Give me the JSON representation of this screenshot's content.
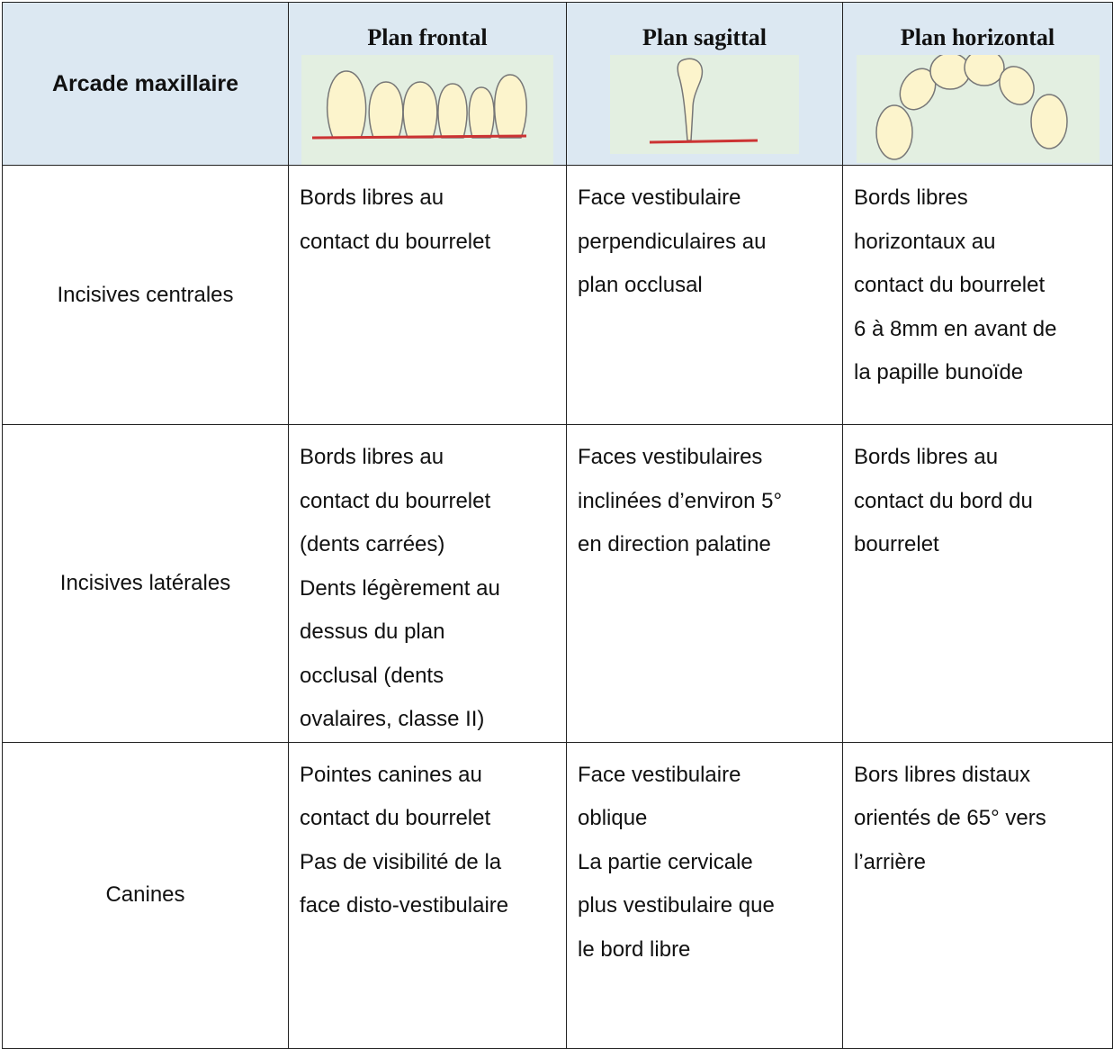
{
  "table": {
    "header": {
      "row_label": "Arcade maxillaire",
      "columns": [
        "Plan frontal",
        "Plan sagittal",
        "Plan horizontal"
      ]
    },
    "rows": [
      {
        "label": "Incisives centrales",
        "cells": [
          [
            "Bords libres au",
            "contact du bourrelet"
          ],
          [
            "Face vestibulaire",
            "perpendiculaires au",
            "plan occlusal"
          ],
          [
            "Bords libres",
            "horizontaux au",
            "contact du bourrelet",
            "6 à 8mm en avant de",
            "la papille bunoïde"
          ]
        ]
      },
      {
        "label": "Incisives latérales",
        "cells": [
          [
            "Bords libres au",
            "contact du bourrelet",
            "(dents carrées)",
            "Dents légèrement au",
            "dessus du plan",
            "occlusal (dents",
            "ovalaires, classe II)"
          ],
          [
            "Faces vestibulaires",
            "inclinées d’environ 5°",
            "en direction palatine"
          ],
          [
            "Bords libres au",
            "contact du bord du",
            "bourrelet"
          ]
        ]
      },
      {
        "label": "Canines",
        "cells": [
          [
            "Pointes canines au",
            "contact du bourrelet",
            "Pas de visibilité de la",
            "face disto-vestibulaire"
          ],
          [
            "Face vestibulaire",
            "oblique",
            "La partie cervicale",
            "plus vestibulaire que",
            "le bord libre"
          ],
          [
            "Bors libres distaux",
            "orientés de 65° vers",
            "l’arrière"
          ]
        ]
      }
    ]
  }
}
